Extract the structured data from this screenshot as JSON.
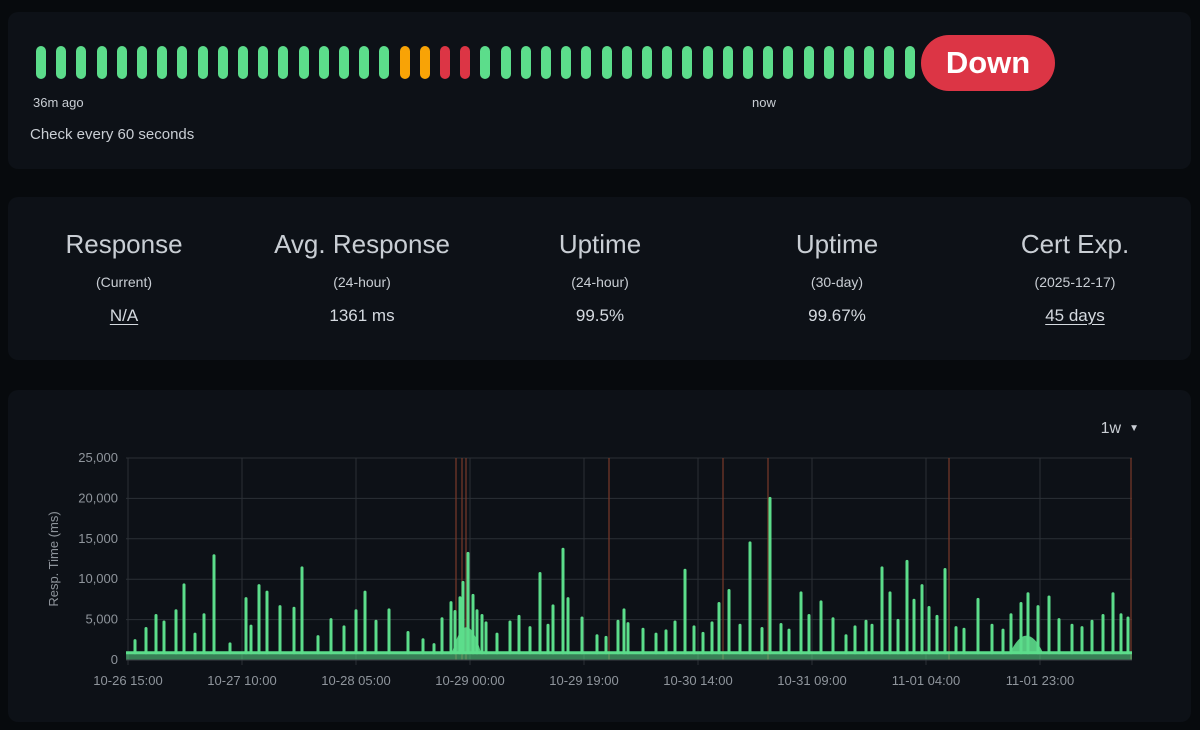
{
  "heartbeat": {
    "beats": [
      "up",
      "up",
      "up",
      "up",
      "up",
      "up",
      "up",
      "up",
      "up",
      "up",
      "up",
      "up",
      "up",
      "up",
      "up",
      "up",
      "up",
      "up",
      "pending",
      "pending",
      "down",
      "down",
      "up",
      "up",
      "up",
      "up",
      "up",
      "up",
      "up",
      "up",
      "up",
      "up",
      "up",
      "up",
      "up",
      "up",
      "up",
      "up",
      "up",
      "up",
      "up",
      "up",
      "up",
      "up",
      "pending",
      "pending",
      "down"
    ],
    "colors": {
      "up": "#5cdd8b",
      "pending": "#f8a306",
      "down": "#dc3545"
    },
    "left_label": "36m ago",
    "right_label": "now",
    "interval_text": "Check every 60 seconds",
    "status": "Down"
  },
  "stats": [
    {
      "title": "Response",
      "sub": "(Current)",
      "value": "N/A",
      "link": true
    },
    {
      "title": "Avg. Response",
      "sub": "(24-hour)",
      "value": "1361 ms",
      "link": false
    },
    {
      "title": "Uptime",
      "sub": "(24-hour)",
      "value": "99.5%",
      "link": false
    },
    {
      "title": "Uptime",
      "sub": "(30-day)",
      "value": "99.67%",
      "link": false
    },
    {
      "title": "Cert Exp.",
      "sub": "(2025-12-17)",
      "value": "45 days",
      "link": true
    }
  ],
  "chart": {
    "period": "1w"
  },
  "chart_data": {
    "type": "area",
    "ylabel": "Resp. Time (ms)",
    "ylim": [
      0,
      25000
    ],
    "y_ticks": [
      "0",
      "5,000",
      "10,000",
      "15,000",
      "20,000",
      "25,000"
    ],
    "x_ticks": [
      "10-26 15:00",
      "10-27 10:00",
      "10-28 05:00",
      "10-29 00:00",
      "10-29 19:00",
      "10-30 14:00",
      "10-31 09:00",
      "11-01 04:00",
      "11-01 23:00"
    ],
    "x_range": [
      "10-26 14:40",
      "11-02 14:20"
    ],
    "series_color": "#5cdd8b",
    "grid": true,
    "baseline_ms": 900,
    "spikes": [
      {
        "x": "10-26 16:10",
        "y": 2400
      },
      {
        "x": "10-26 18:00",
        "y": 3900
      },
      {
        "x": "10-26 19:40",
        "y": 5500
      },
      {
        "x": "10-26 21:00",
        "y": 4700
      },
      {
        "x": "10-26 23:00",
        "y": 6100
      },
      {
        "x": "10-27 00:20",
        "y": 9300
      },
      {
        "x": "10-27 02:10",
        "y": 3200
      },
      {
        "x": "10-27 03:40",
        "y": 5600
      },
      {
        "x": "10-27 05:20",
        "y": 12900
      },
      {
        "x": "10-27 08:00",
        "y": 2000
      },
      {
        "x": "10-27 10:40",
        "y": 7600
      },
      {
        "x": "10-27 11:30",
        "y": 4200
      },
      {
        "x": "10-27 12:50",
        "y": 9200
      },
      {
        "x": "10-27 14:10",
        "y": 8400
      },
      {
        "x": "10-27 16:20",
        "y": 6600
      },
      {
        "x": "10-27 18:40",
        "y": 6400
      },
      {
        "x": "10-27 20:00",
        "y": 11400
      },
      {
        "x": "10-27 22:40",
        "y": 2900
      },
      {
        "x": "10-28 00:50",
        "y": 5000
      },
      {
        "x": "10-28 03:00",
        "y": 4100
      },
      {
        "x": "10-28 05:00",
        "y": 6100
      },
      {
        "x": "10-28 06:30",
        "y": 8400
      },
      {
        "x": "10-28 08:20",
        "y": 4800
      },
      {
        "x": "10-28 10:30",
        "y": 6200
      },
      {
        "x": "10-28 13:40",
        "y": 3400
      },
      {
        "x": "10-28 16:10",
        "y": 2500
      },
      {
        "x": "10-28 18:00",
        "y": 1900
      },
      {
        "x": "10-28 19:20",
        "y": 5100
      },
      {
        "x": "10-28 20:50",
        "y": 7100
      },
      {
        "x": "10-28 21:30",
        "y": 6000
      },
      {
        "x": "10-28 22:20",
        "y": 7700
      },
      {
        "x": "10-28 22:50",
        "y": 9600
      },
      {
        "x": "10-28 23:40",
        "y": 13200
      },
      {
        "x": "10-29 00:30",
        "y": 8000
      },
      {
        "x": "10-29 01:10",
        "y": 6100
      },
      {
        "x": "10-29 02:00",
        "y": 5500
      },
      {
        "x": "10-29 02:40",
        "y": 4600
      },
      {
        "x": "10-29 04:30",
        "y": 3200
      },
      {
        "x": "10-29 06:40",
        "y": 4700
      },
      {
        "x": "10-29 08:10",
        "y": 5400
      },
      {
        "x": "10-29 10:00",
        "y": 4000
      },
      {
        "x": "10-29 11:40",
        "y": 10700
      },
      {
        "x": "10-29 13:00",
        "y": 4300
      },
      {
        "x": "10-29 13:50",
        "y": 6700
      },
      {
        "x": "10-29 15:30",
        "y": 13700
      },
      {
        "x": "10-29 16:20",
        "y": 7600
      },
      {
        "x": "10-29 18:40",
        "y": 5200
      },
      {
        "x": "10-29 21:10",
        "y": 3000
      },
      {
        "x": "10-29 22:40",
        "y": 2800
      },
      {
        "x": "10-30 00:40",
        "y": 4800
      },
      {
        "x": "10-30 01:40",
        "y": 6200
      },
      {
        "x": "10-30 02:20",
        "y": 4500
      },
      {
        "x": "10-30 04:50",
        "y": 3800
      },
      {
        "x": "10-30 07:00",
        "y": 3200
      },
      {
        "x": "10-30 08:40",
        "y": 3600
      },
      {
        "x": "10-30 10:10",
        "y": 4700
      },
      {
        "x": "10-30 11:50",
        "y": 11100
      },
      {
        "x": "10-30 13:20",
        "y": 4100
      },
      {
        "x": "10-30 14:50",
        "y": 3300
      },
      {
        "x": "10-30 16:20",
        "y": 4600
      },
      {
        "x": "10-30 17:30",
        "y": 7000
      },
      {
        "x": "10-30 19:10",
        "y": 8600
      },
      {
        "x": "10-30 21:00",
        "y": 4300
      },
      {
        "x": "10-30 22:40",
        "y": 14500
      },
      {
        "x": "10-31 00:40",
        "y": 3900
      },
      {
        "x": "10-31 02:00",
        "y": 20000
      },
      {
        "x": "10-31 03:50",
        "y": 4400
      },
      {
        "x": "10-31 05:10",
        "y": 3700
      },
      {
        "x": "10-31 07:10",
        "y": 8300
      },
      {
        "x": "10-31 08:30",
        "y": 5500
      },
      {
        "x": "10-31 10:30",
        "y": 7200
      },
      {
        "x": "10-31 12:30",
        "y": 5100
      },
      {
        "x": "10-31 14:40",
        "y": 3000
      },
      {
        "x": "10-31 16:10",
        "y": 4100
      },
      {
        "x": "10-31 18:00",
        "y": 4800
      },
      {
        "x": "10-31 19:00",
        "y": 4300
      },
      {
        "x": "10-31 20:40",
        "y": 11400
      },
      {
        "x": "10-31 22:00",
        "y": 8300
      },
      {
        "x": "10-31 23:20",
        "y": 4900
      },
      {
        "x": "11-01 00:50",
        "y": 12200
      },
      {
        "x": "11-01 02:00",
        "y": 7400
      },
      {
        "x": "11-01 03:20",
        "y": 9200
      },
      {
        "x": "11-01 04:30",
        "y": 6500
      },
      {
        "x": "11-01 05:50",
        "y": 5400
      },
      {
        "x": "11-01 07:10",
        "y": 11200
      },
      {
        "x": "11-01 09:00",
        "y": 4000
      },
      {
        "x": "11-01 10:20",
        "y": 3800
      },
      {
        "x": "11-01 12:40",
        "y": 7500
      },
      {
        "x": "11-01 15:00",
        "y": 4300
      },
      {
        "x": "11-01 16:50",
        "y": 3700
      },
      {
        "x": "11-01 18:10",
        "y": 5600
      },
      {
        "x": "11-01 19:50",
        "y": 7000
      },
      {
        "x": "11-01 21:00",
        "y": 8200
      },
      {
        "x": "11-01 22:40",
        "y": 6600
      },
      {
        "x": "11-02 00:30",
        "y": 7800
      },
      {
        "x": "11-02 02:10",
        "y": 5000
      },
      {
        "x": "11-02 04:20",
        "y": 4300
      },
      {
        "x": "11-02 06:00",
        "y": 4000
      },
      {
        "x": "11-02 07:40",
        "y": 4800
      },
      {
        "x": "11-02 09:30",
        "y": 5500
      },
      {
        "x": "11-02 11:10",
        "y": 8200
      },
      {
        "x": "11-02 12:30",
        "y": 5600
      },
      {
        "x": "11-02 13:40",
        "y": 5200
      }
    ],
    "busy_periods": [
      {
        "from": "10-28 21:00",
        "to": "10-29 01:50",
        "level": 4500
      },
      {
        "from": "11-01 18:00",
        "to": "11-01 23:30",
        "level": 3200
      }
    ],
    "down_markers": [
      "10-28 21:40",
      "10-28 22:40",
      "10-28 23:20",
      "10-29 23:10",
      "10-30 18:10",
      "10-31 01:40",
      "11-01 07:50",
      "11-02 14:10"
    ]
  }
}
